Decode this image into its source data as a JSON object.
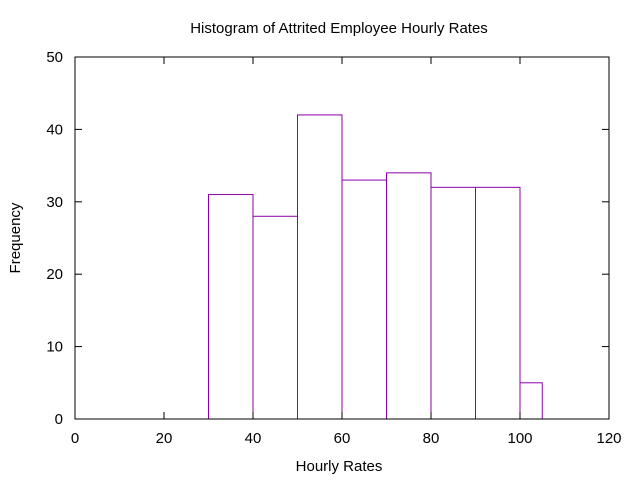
{
  "chart_data": {
    "type": "bar",
    "title": "Histogram of Attrited Employee Hourly Rates",
    "xlabel": "Hourly Rates",
    "ylabel": "Frequency",
    "xlim": [
      0,
      120
    ],
    "ylim": [
      0,
      50
    ],
    "xticks": [
      0,
      20,
      40,
      60,
      80,
      100,
      120
    ],
    "yticks": [
      0,
      10,
      20,
      30,
      40,
      50
    ],
    "grid": false,
    "bars": [
      {
        "x0": 30,
        "x1": 40,
        "value": 31
      },
      {
        "x0": 40,
        "x1": 50,
        "value": 28
      },
      {
        "x0": 50,
        "x1": 60,
        "value": 42
      },
      {
        "x0": 60,
        "x1": 70,
        "value": 33
      },
      {
        "x0": 70,
        "x1": 80,
        "value": 34
      },
      {
        "x0": 80,
        "x1": 90,
        "value": 32
      },
      {
        "x0": 90,
        "x1": 100,
        "value": 32
      },
      {
        "x0": 100,
        "x1": 105,
        "value": 5
      }
    ],
    "colors": {
      "bar_edge": "#8b00a8",
      "axis": "#000000"
    }
  }
}
